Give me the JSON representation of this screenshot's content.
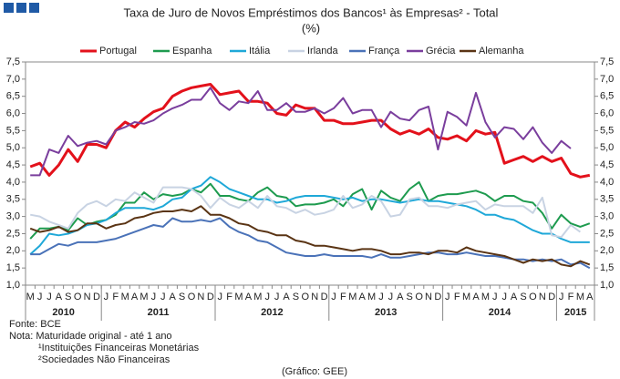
{
  "chart_data": {
    "type": "line",
    "title": "Taxa de Juro de Novos Empréstimos dos Bancos¹ às Empresas² - Total",
    "subtitle": "(%)",
    "categories": [
      "M",
      "J",
      "J",
      "A",
      "S",
      "O",
      "N",
      "D",
      "J",
      "F",
      "M",
      "A",
      "M",
      "J",
      "J",
      "A",
      "S",
      "O",
      "N",
      "D",
      "J",
      "F",
      "M",
      "A",
      "M",
      "J",
      "J",
      "A",
      "S",
      "O",
      "N",
      "D",
      "J",
      "F",
      "M",
      "A",
      "M",
      "J",
      "J",
      "A",
      "S",
      "O",
      "N",
      "D",
      "J",
      "F",
      "M",
      "A",
      "M",
      "J",
      "J",
      "A",
      "S",
      "O",
      "N",
      "D",
      "J",
      "F",
      "M",
      "A"
    ],
    "years": [
      "2010",
      "2011",
      "2012",
      "2013",
      "2014",
      "2015"
    ],
    "series": [
      {
        "name": "Portugal",
        "color": "#e3111b",
        "values": [
          4.45,
          4.55,
          4.2,
          4.5,
          4.95,
          4.6,
          5.1,
          5.1,
          5.0,
          5.5,
          5.75,
          5.6,
          5.85,
          6.05,
          6.15,
          6.5,
          6.65,
          6.75,
          6.8,
          6.85,
          6.55,
          6.6,
          6.65,
          6.35,
          6.35,
          6.3,
          6.0,
          5.95,
          6.25,
          6.15,
          6.15,
          5.8,
          5.8,
          5.7,
          5.7,
          5.75,
          5.8,
          5.8,
          5.55,
          5.4,
          5.5,
          5.4,
          5.55,
          5.3,
          5.25,
          5.35,
          5.2,
          5.5,
          5.4,
          5.45,
          4.55,
          4.65,
          4.75,
          4.6,
          4.75,
          4.6,
          4.7,
          4.25,
          4.15,
          4.2
        ]
      },
      {
        "name": "Espanha",
        "color": "#1e9b4f",
        "values": [
          2.35,
          2.65,
          2.65,
          2.7,
          2.6,
          2.95,
          2.75,
          2.85,
          2.9,
          3.05,
          3.4,
          3.4,
          3.7,
          3.5,
          3.65,
          3.6,
          3.65,
          3.8,
          3.7,
          3.95,
          3.6,
          3.6,
          3.5,
          3.45,
          3.7,
          3.85,
          3.6,
          3.55,
          3.3,
          3.35,
          3.35,
          3.4,
          3.5,
          3.3,
          3.65,
          3.8,
          3.2,
          3.75,
          3.55,
          3.45,
          3.8,
          4.0,
          3.45,
          3.6,
          3.65,
          3.65,
          3.7,
          3.75,
          3.65,
          3.45,
          3.6,
          3.6,
          3.45,
          3.4,
          3.1,
          2.65,
          3.05,
          2.8,
          2.7,
          2.8
        ]
      },
      {
        "name": "Itália",
        "color": "#1fa8d8",
        "values": [
          1.9,
          2.15,
          2.5,
          2.45,
          2.5,
          2.6,
          2.75,
          2.8,
          2.9,
          3.1,
          3.25,
          3.25,
          3.25,
          3.2,
          3.3,
          3.5,
          3.55,
          3.8,
          3.9,
          4.15,
          4.0,
          3.8,
          3.7,
          3.6,
          3.5,
          3.5,
          3.4,
          3.45,
          3.55,
          3.6,
          3.6,
          3.6,
          3.55,
          3.5,
          3.55,
          3.45,
          3.5,
          3.5,
          3.45,
          3.4,
          3.45,
          3.5,
          3.45,
          3.45,
          3.4,
          3.35,
          3.3,
          3.2,
          3.05,
          3.05,
          2.95,
          2.9,
          2.75,
          2.6,
          2.5,
          2.5,
          2.35,
          2.25,
          2.25,
          2.25
        ]
      },
      {
        "name": "Irlanda",
        "color": "#c8d3e3",
        "values": [
          3.05,
          3.0,
          2.85,
          2.75,
          2.65,
          3.1,
          3.35,
          3.45,
          3.3,
          3.5,
          3.45,
          3.7,
          3.55,
          3.4,
          3.85,
          3.85,
          3.85,
          3.8,
          3.6,
          3.25,
          3.55,
          3.35,
          3.25,
          3.45,
          3.25,
          3.6,
          3.3,
          3.25,
          3.1,
          3.2,
          3.05,
          3.1,
          3.2,
          3.6,
          3.25,
          3.35,
          3.6,
          3.45,
          3.0,
          3.05,
          3.5,
          3.55,
          3.3,
          3.3,
          3.25,
          3.35,
          3.4,
          3.45,
          3.2,
          3.35,
          3.3,
          3.3,
          3.3,
          3.1,
          3.55,
          2.45,
          2.4,
          2.75,
          2.55,
          null
        ]
      },
      {
        "name": "França",
        "color": "#4a72b8",
        "values": [
          1.9,
          1.9,
          2.05,
          2.2,
          2.15,
          2.25,
          2.25,
          2.25,
          2.3,
          2.35,
          2.45,
          2.55,
          2.65,
          2.75,
          2.7,
          2.95,
          2.85,
          2.85,
          2.9,
          2.85,
          2.95,
          2.7,
          2.55,
          2.45,
          2.3,
          2.25,
          2.1,
          1.95,
          1.9,
          1.85,
          1.85,
          1.9,
          1.85,
          1.85,
          1.85,
          1.85,
          1.8,
          1.9,
          1.8,
          1.8,
          1.85,
          1.9,
          1.95,
          1.95,
          1.9,
          1.9,
          1.95,
          1.9,
          1.85,
          1.85,
          1.8,
          1.75,
          1.75,
          1.7,
          1.75,
          1.7,
          1.75,
          1.6,
          1.65,
          1.5
        ]
      },
      {
        "name": "Grécia",
        "color": "#7a3e9d",
        "values": [
          4.2,
          4.2,
          4.95,
          4.85,
          5.35,
          5.05,
          5.15,
          5.2,
          5.1,
          5.5,
          5.6,
          5.75,
          5.7,
          5.8,
          6.0,
          6.15,
          6.25,
          6.4,
          6.4,
          6.75,
          6.3,
          6.1,
          6.35,
          6.3,
          6.65,
          6.1,
          6.1,
          6.3,
          6.05,
          6.05,
          6.15,
          6.0,
          6.15,
          6.45,
          6.0,
          6.1,
          6.1,
          5.6,
          6.05,
          5.85,
          5.8,
          6.1,
          6.2,
          4.95,
          6.05,
          5.9,
          5.65,
          6.6,
          5.75,
          5.3,
          5.6,
          5.55,
          5.25,
          5.6,
          5.15,
          4.85,
          5.2,
          4.98,
          null,
          null
        ]
      },
      {
        "name": "Alemanha",
        "color": "#5a3414",
        "values": [
          2.65,
          2.55,
          2.6,
          2.7,
          2.55,
          2.6,
          2.8,
          2.8,
          2.65,
          2.75,
          2.8,
          2.95,
          3.0,
          3.1,
          3.15,
          3.15,
          3.2,
          3.15,
          3.3,
          3.05,
          3.05,
          2.95,
          2.8,
          2.75,
          2.6,
          2.55,
          2.45,
          2.45,
          2.3,
          2.25,
          2.15,
          2.15,
          2.1,
          2.05,
          2.0,
          2.05,
          2.05,
          2.0,
          1.9,
          1.9,
          1.95,
          1.95,
          1.9,
          2.0,
          2.0,
          1.95,
          2.1,
          2.0,
          1.95,
          1.9,
          1.85,
          1.75,
          1.65,
          1.75,
          1.7,
          1.75,
          1.6,
          1.55,
          1.7,
          1.6
        ]
      }
    ],
    "ylim": [
      1.0,
      7.5
    ],
    "yticks": [
      {
        "value": 1.0,
        "label": "1,0"
      },
      {
        "value": 1.5,
        "label": "1,5"
      },
      {
        "value": 2.0,
        "label": "2,0"
      },
      {
        "value": 2.5,
        "label": "2,5"
      },
      {
        "value": 3.0,
        "label": "3,0"
      },
      {
        "value": 3.5,
        "label": "3,5"
      },
      {
        "value": 4.0,
        "label": "4,0"
      },
      {
        "value": 4.5,
        "label": "4,5"
      },
      {
        "value": 5.0,
        "label": "5,0"
      },
      {
        "value": 5.5,
        "label": "5,5"
      },
      {
        "value": 6.0,
        "label": "6,0"
      },
      {
        "value": 6.5,
        "label": "6,5"
      },
      {
        "value": 7.0,
        "label": "7,0"
      },
      {
        "value": 7.5,
        "label": "7,5"
      }
    ],
    "y2lim": [
      1.0,
      7.5
    ],
    "y2ticks": [
      {
        "value": 1.0,
        "label": "1,0"
      },
      {
        "value": 1.5,
        "label": "1,5"
      },
      {
        "value": 2.0,
        "label": "2,0"
      },
      {
        "value": 2.5,
        "label": "2,5"
      },
      {
        "value": 3.0,
        "label": "3,0"
      },
      {
        "value": 3.5,
        "label": "3,5"
      },
      {
        "value": 4.0,
        "label": "4,0"
      },
      {
        "value": 4.5,
        "label": "4,5"
      },
      {
        "value": 5.0,
        "label": "5,0"
      },
      {
        "value": 5.5,
        "label": "5,5"
      },
      {
        "value": 6.0,
        "label": "6,0"
      },
      {
        "value": 6.5,
        "label": "6,5"
      },
      {
        "value": 7.0,
        "label": "7,0"
      },
      {
        "value": 7.5,
        "label": "7,5"
      }
    ],
    "grid": false,
    "legend": "top",
    "notes": [
      "Fonte: BCE",
      "Nota: Maturidade original - até 1 ano",
      "¹Instituições Financeiras Monetárias",
      "²Sociedades Não Financeiras"
    ],
    "credit": "(Gráfico: GEE)"
  }
}
